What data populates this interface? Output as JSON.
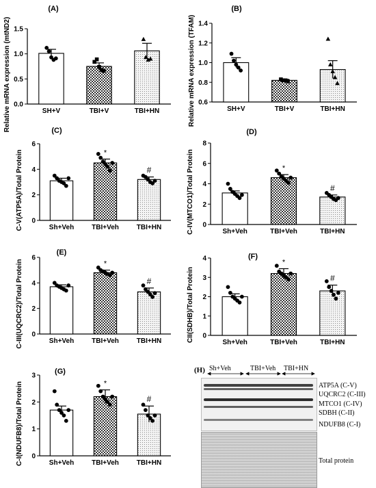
{
  "chart_data": [
    {
      "panel": "(A)",
      "type": "bar",
      "ylabel": "Relative mRNA expression (mtND2)",
      "categories": [
        "SH+V",
        "TBI+V",
        "TBI+HN"
      ],
      "values": [
        1.01,
        0.75,
        1.06
      ],
      "errors": [
        0.08,
        0.07,
        0.15
      ],
      "ylim": [
        0,
        1.5
      ],
      "yticks": [
        "0.0",
        "0.5",
        "1.0",
        "1.5"
      ],
      "points": [
        [
          1.12,
          1.05,
          0.93,
          0.88,
          0.91
        ],
        [
          0.84,
          0.89,
          0.74,
          0.68,
          0.66
        ],
        [
          1.29,
          0.93,
          0.88,
          0.9
        ]
      ],
      "markers": [
        "circle",
        "square",
        "triangle"
      ],
      "annotations": [
        "",
        "",
        ""
      ]
    },
    {
      "panel": "(B)",
      "type": "bar",
      "ylabel": "Relative mRNA expression (TFAM)",
      "categories": [
        "SH+V",
        "TBI+V",
        "TBI+HN"
      ],
      "values": [
        1.0,
        0.82,
        0.93
      ],
      "errors": [
        0.05,
        0.01,
        0.09
      ],
      "ylim": [
        0.6,
        1.4
      ],
      "yticks": [
        "0.6",
        "0.8",
        "1.0",
        "1.2",
        "1.4"
      ],
      "points": [
        [
          1.09,
          1.02,
          0.98,
          0.95,
          0.92
        ],
        [
          0.83,
          0.82,
          0.82,
          0.81
        ],
        [
          1.24,
          0.98,
          0.91,
          0.85,
          0.79
        ]
      ],
      "markers": [
        "circle",
        "square",
        "triangle"
      ],
      "annotations": [
        "",
        "",
        ""
      ]
    },
    {
      "panel": "(C)",
      "type": "bar",
      "ylabel": "C-V(ATP5A)/Total Protein",
      "categories": [
        "Sh+Veh",
        "TBI+Veh",
        "TBI+HN"
      ],
      "values": [
        3.1,
        4.5,
        3.2
      ],
      "errors": [
        0.2,
        0.3,
        0.2
      ],
      "ylim": [
        0,
        6
      ],
      "yticks": [
        "0",
        "2",
        "4",
        "6"
      ],
      "points": [
        [
          3.5,
          3.3,
          3.1,
          3.0,
          2.9,
          2.7,
          3.3
        ],
        [
          5.2,
          4.9,
          4.6,
          4.4,
          4.2,
          3.9,
          4.5
        ],
        [
          3.5,
          3.4,
          3.2,
          3.0,
          2.9,
          3.1
        ]
      ],
      "markers": [
        "circle",
        "circle",
        "circle"
      ],
      "annotations": [
        "",
        "*",
        "#"
      ]
    },
    {
      "panel": "(D)",
      "type": "bar",
      "ylabel": "C-IV(MTCO1)/Total Protein",
      "categories": [
        "Sh+Veh",
        "TBI+Veh",
        "TBI+HN"
      ],
      "values": [
        3.1,
        4.6,
        2.7
      ],
      "errors": [
        0.2,
        0.3,
        0.2
      ],
      "ylim": [
        0,
        8
      ],
      "yticks": [
        "0",
        "2",
        "4",
        "6",
        "8"
      ],
      "points": [
        [
          4.0,
          3.5,
          3.2,
          3.0,
          2.8,
          2.6,
          2.9
        ],
        [
          5.3,
          5.0,
          4.7,
          4.5,
          4.3,
          4.1,
          4.6
        ],
        [
          3.1,
          2.9,
          2.7,
          2.5,
          2.4,
          2.6
        ]
      ],
      "markers": [
        "circle",
        "circle",
        "circle"
      ],
      "annotations": [
        "",
        "*",
        "#"
      ]
    },
    {
      "panel": "(E)",
      "type": "bar",
      "ylabel": "C-III(UQCRC2)/Total Protein",
      "categories": [
        "Sh+Veh",
        "TBI+Veh",
        "TBI+HN"
      ],
      "values": [
        3.7,
        4.8,
        3.3
      ],
      "errors": [
        0.15,
        0.2,
        0.3
      ],
      "ylim": [
        0,
        6
      ],
      "yticks": [
        "0",
        "2",
        "4",
        "6"
      ],
      "points": [
        [
          4.0,
          3.8,
          3.7,
          3.6,
          3.5,
          3.4,
          3.8
        ],
        [
          5.2,
          5.0,
          4.9,
          4.8,
          4.7,
          4.6,
          4.8
        ],
        [
          3.8,
          3.5,
          3.3,
          3.1,
          2.9,
          3.2
        ]
      ],
      "markers": [
        "circle",
        "circle",
        "circle"
      ],
      "annotations": [
        "",
        "*",
        "#"
      ]
    },
    {
      "panel": "(F)",
      "type": "bar",
      "ylabel": "CII(SDHB)/Total Protein",
      "categories": [
        "Sh+Veh",
        "TBI+Veh",
        "TBI+HN"
      ],
      "values": [
        2.0,
        3.2,
        2.3
      ],
      "errors": [
        0.15,
        0.25,
        0.3
      ],
      "ylim": [
        0,
        4
      ],
      "yticks": [
        "0",
        "1",
        "2",
        "3",
        "4"
      ],
      "points": [
        [
          2.5,
          2.2,
          2.0,
          1.9,
          1.8,
          1.7,
          2.0
        ],
        [
          3.6,
          3.3,
          3.2,
          3.1,
          3.0,
          2.9,
          3.2
        ],
        [
          2.8,
          2.5,
          2.3,
          2.1,
          1.9,
          2.2
        ]
      ],
      "markers": [
        "circle",
        "circle",
        "circle"
      ],
      "annotations": [
        "",
        "*",
        "#"
      ]
    },
    {
      "panel": "(G)",
      "type": "bar",
      "ylabel": "C-I(NDUFB8)/Total Protein",
      "categories": [
        "Sh+Veh",
        "TBI+Veh",
        "TBI+HN"
      ],
      "values": [
        1.7,
        2.2,
        1.55
      ],
      "errors": [
        0.15,
        0.25,
        0.3
      ],
      "ylim": [
        0,
        3
      ],
      "yticks": [
        "0",
        "1",
        "2",
        "3"
      ],
      "points": [
        [
          2.4,
          1.9,
          1.7,
          1.6,
          1.5,
          1.3,
          1.7
        ],
        [
          2.6,
          2.4,
          2.2,
          2.1,
          2.0,
          1.9,
          2.2
        ],
        [
          1.9,
          1.7,
          1.5,
          1.4,
          1.3,
          1.5
        ]
      ],
      "markers": [
        "circle",
        "circle",
        "circle"
      ],
      "annotations": [
        "",
        "*",
        "#"
      ]
    }
  ],
  "blot": {
    "label": "(H)",
    "groups": [
      "Sh+Veh",
      "TBI+Veh",
      "TBI+HN"
    ],
    "bands": [
      "ATP5A (C-V)",
      "UQCRC2 (C-III)",
      "MTCO1 (C-IV)",
      "SDBH (C-II)",
      "NDUFB8 (C-I)"
    ],
    "total_label": "Total protein"
  }
}
